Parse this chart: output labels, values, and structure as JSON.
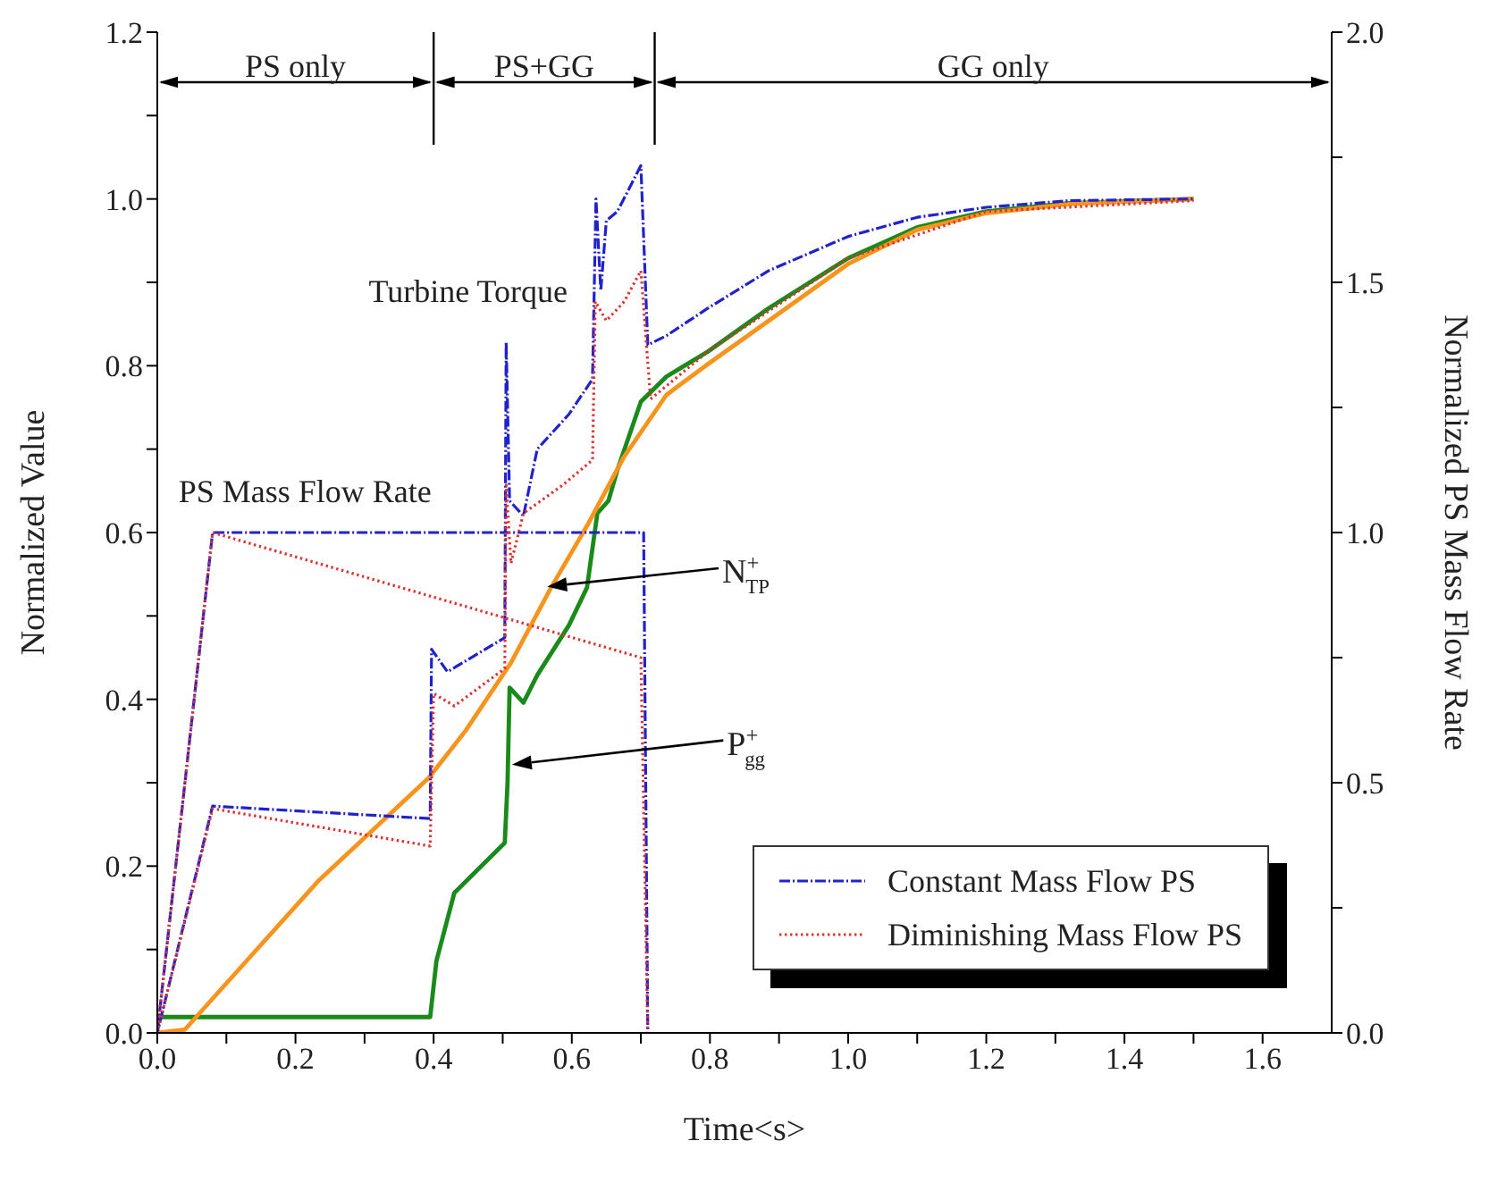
{
  "chart_data": {
    "type": "line",
    "xlabel": "Time<s>",
    "ylabel": "Normalized Value",
    "y2label": "Normalized PS Mass Flow Rate",
    "xlim": [
      0,
      1.7
    ],
    "xticks": [
      {
        "value": 0,
        "label": "0.0"
      },
      {
        "value": 0.1,
        "label": null
      },
      {
        "value": 0.2,
        "label": "0.2"
      },
      {
        "value": 0.3,
        "label": null
      },
      {
        "value": 0.4,
        "label": "0.4"
      },
      {
        "value": 0.5,
        "label": null
      },
      {
        "value": 0.6,
        "label": "0.6"
      },
      {
        "value": 0.7,
        "label": null
      },
      {
        "value": 0.8,
        "label": "0.8"
      },
      {
        "value": 0.9,
        "label": null
      },
      {
        "value": 1.0,
        "label": "1.0"
      },
      {
        "value": 1.1,
        "label": null
      },
      {
        "value": 1.2,
        "label": "1.2"
      },
      {
        "value": 1.3,
        "label": null
      },
      {
        "value": 1.4,
        "label": "1.4"
      },
      {
        "value": 1.5,
        "label": null
      },
      {
        "value": 1.6,
        "label": "1.6"
      }
    ],
    "ylim": [
      0,
      1.2
    ],
    "yticks": [
      {
        "value": 0,
        "label": "0.0"
      },
      {
        "value": 0.1,
        "label": null
      },
      {
        "value": 0.2,
        "label": "0.2"
      },
      {
        "value": 0.3,
        "label": null
      },
      {
        "value": 0.4,
        "label": "0.4"
      },
      {
        "value": 0.5,
        "label": null
      },
      {
        "value": 0.6,
        "label": "0.6"
      },
      {
        "value": 0.7,
        "label": null
      },
      {
        "value": 0.8,
        "label": "0.8"
      },
      {
        "value": 0.9,
        "label": null
      },
      {
        "value": 1.0,
        "label": "1.0"
      },
      {
        "value": 1.1,
        "label": null
      },
      {
        "value": 1.2,
        "label": "1.2"
      }
    ],
    "y2lim": [
      0,
      2.0
    ],
    "y2ticks": [
      {
        "value": 0,
        "label": "0.0"
      },
      {
        "value": 0.25,
        "label": null
      },
      {
        "value": 0.5,
        "label": "0.5"
      },
      {
        "value": 0.75,
        "label": null
      },
      {
        "value": 1.0,
        "label": "1.0"
      },
      {
        "value": 1.25,
        "label": null
      },
      {
        "value": 1.5,
        "label": "1.5"
      },
      {
        "value": 1.75,
        "label": null
      },
      {
        "value": 2.0,
        "label": "2.0"
      }
    ],
    "grid": false,
    "legend": "bottom right",
    "marker": "none",
    "series": [
      {
        "name": "Constant Mass Flow PS",
        "color": "#2222cc",
        "line_style": "dashed",
        "x": [
          0,
          0.08,
          0.395,
          0.397,
          0.42,
          0.503,
          0.505,
          0.51,
          0.53,
          0.55,
          0.596,
          0.63,
          0.635,
          0.642,
          0.65,
          0.666,
          0.7,
          0.71,
          0.737,
          0.797,
          0.885,
          1.0,
          1.1,
          1.2,
          1.32,
          1.5
        ],
        "values": [
          0,
          0.272,
          0.257,
          0.46,
          0.433,
          0.474,
          0.828,
          0.638,
          0.62,
          0.7,
          0.742,
          0.784,
          1.0,
          0.89,
          0.974,
          0.985,
          1.04,
          0.825,
          0.836,
          0.869,
          0.914,
          0.955,
          0.978,
          0.99,
          0.998,
          1.0
        ]
      },
      {
        "color": "#2222cc",
        "line_style": "dashed",
        "axis": "y2",
        "x": [
          0,
          0.08,
          0.704,
          0.71
        ],
        "values": [
          0,
          1.0,
          1.0,
          0
        ]
      },
      {
        "name": "Diminishing Mass Flow PS",
        "color": "#e03030",
        "line_style": "dotted",
        "x": [
          0,
          0.08,
          0.395,
          0.4,
          0.43,
          0.503,
          0.505,
          0.512,
          0.53,
          0.587,
          0.63,
          0.634,
          0.65,
          0.676,
          0.7,
          0.714,
          0.797,
          1.0,
          1.2,
          1.5
        ],
        "values": [
          0,
          0.269,
          0.224,
          0.407,
          0.392,
          0.437,
          0.657,
          0.563,
          0.623,
          0.657,
          0.687,
          0.877,
          0.854,
          0.877,
          0.914,
          0.76,
          0.817,
          0.929,
          0.985,
          0.998
        ]
      },
      {
        "color": "#e03030",
        "line_style": "dotted",
        "axis": "y2",
        "x": [
          0,
          0.08,
          0.7,
          0.71
        ],
        "values": [
          0,
          1.0,
          0.75,
          0
        ]
      },
      {
        "color": "#1a8a1a",
        "line_style": "solid",
        "x": [
          0,
          0.395,
          0.404,
          0.43,
          0.503,
          0.507,
          0.51,
          0.53,
          0.55,
          0.596,
          0.622,
          0.637,
          0.653,
          0.666,
          0.7,
          0.737,
          0.797,
          0.885,
          1.0,
          1.1,
          1.2,
          1.32,
          1.5
        ],
        "values": [
          0.019,
          0.019,
          0.086,
          0.168,
          0.228,
          0.3,
          0.414,
          0.396,
          0.429,
          0.489,
          0.534,
          0.623,
          0.638,
          0.675,
          0.757,
          0.787,
          0.817,
          0.869,
          0.929,
          0.966,
          0.985,
          0.995,
          1.0
        ]
      },
      {
        "color": "#f7941d",
        "line_style": "solid",
        "x": [
          0,
          0.04,
          0.08,
          0.234,
          0.393,
          0.446,
          0.512,
          0.57,
          0.622,
          0.675,
          0.737,
          0.797,
          0.885,
          1.0,
          1.1,
          1.2,
          1.32,
          1.5
        ],
        "values": [
          0,
          0.004,
          0.041,
          0.183,
          0.306,
          0.362,
          0.444,
          0.534,
          0.608,
          0.69,
          0.765,
          0.802,
          0.854,
          0.922,
          0.963,
          0.983,
          0.994,
          1.0
        ]
      }
    ],
    "ref_lines": [
      {
        "axis": "x",
        "value": 0.4
      },
      {
        "axis": "x",
        "value": 0.72
      }
    ],
    "annotations": [
      "Turbine Torque",
      "PS Mass Flow Rate",
      "N$^{+}$$_{TP}$",
      "P$^{+}$$_{gg}$",
      "PS only",
      "PS+GG",
      "GG only"
    ]
  }
}
